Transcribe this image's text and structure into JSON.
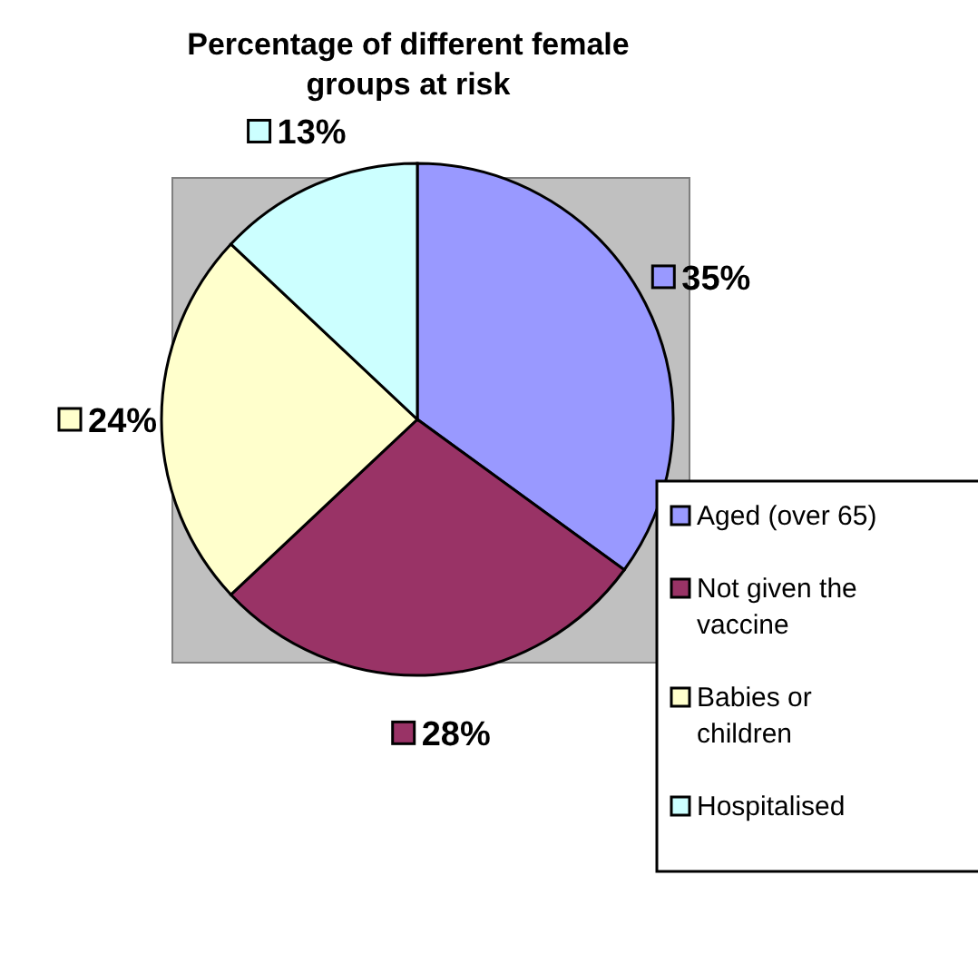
{
  "chart_data": {
    "type": "pie",
    "title": "Percentage of different female groups at risk",
    "categories": [
      "Aged (over 65)",
      "Not given the vaccine",
      "Babies or children",
      "Hospitalised"
    ],
    "values": [
      35,
      28,
      24,
      13
    ],
    "colors": [
      "#9999ff",
      "#993366",
      "#ffffcc",
      "#ccffff"
    ],
    "value_labels": [
      "35%",
      "28%",
      "24%",
      "13%"
    ],
    "legend": "bottom right"
  }
}
